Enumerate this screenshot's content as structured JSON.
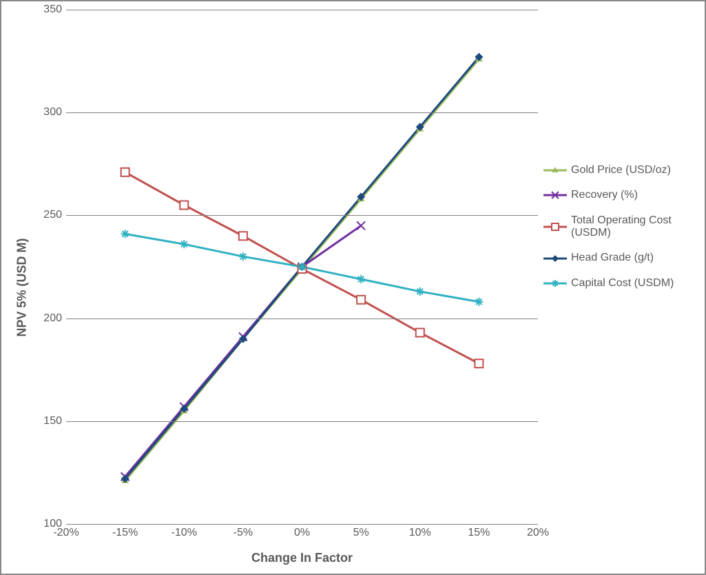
{
  "chart": {
    "type": "line",
    "background_color": "#ffffff",
    "border_color": "#888888",
    "grid_color": "#808080",
    "text_color": "#595959",
    "xlabel": "Change In Factor",
    "ylabel": "NPV 5% (USD M)",
    "axis_label_fontsize": 18,
    "tick_fontsize": 16,
    "legend_fontsize": 16,
    "xlim": [
      -20,
      20
    ],
    "ylim": [
      100,
      350
    ],
    "xticks": [
      -20,
      -15,
      -10,
      -5,
      0,
      5,
      10,
      15,
      20
    ],
    "xtick_labels": [
      "-20%",
      "-15%",
      "-10%",
      "-5%",
      "0%",
      "5%",
      "10%",
      "15%",
      "20%"
    ],
    "yticks": [
      100,
      150,
      200,
      250,
      300,
      350
    ],
    "ytick_labels": [
      "100",
      "150",
      "200",
      "250",
      "300",
      "350"
    ],
    "line_width": 3,
    "marker_size": 6,
    "x_values": [
      -15,
      -10,
      -5,
      0,
      5,
      10,
      15
    ],
    "series": [
      {
        "id": "gold_price",
        "label": "Gold Price (USD/oz)",
        "color": "#9bbb59",
        "marker": "triangle",
        "y": [
          121,
          155,
          190,
          224,
          258,
          292,
          326
        ]
      },
      {
        "id": "recovery",
        "label": "Recovery (%)",
        "color": "#7030a0",
        "marker": "x",
        "y": [
          123,
          157,
          191,
          225,
          245,
          null,
          null
        ]
      },
      {
        "id": "total_opex",
        "label": "Total Operating Cost (USDM)",
        "color": "#c0504d",
        "marker": "square-open",
        "y": [
          271,
          255,
          240,
          224,
          209,
          193,
          178
        ]
      },
      {
        "id": "head_grade",
        "label": "Head Grade (g/t)",
        "color": "#1f497d",
        "marker": "diamond",
        "y": [
          122,
          156,
          190,
          225,
          259,
          293,
          327
        ]
      },
      {
        "id": "capex",
        "label": "Capital Cost (USDM)",
        "color": "#31b2c2",
        "marker": "asterisk",
        "y": [
          241,
          236,
          230,
          225,
          219,
          213,
          208
        ]
      }
    ]
  }
}
